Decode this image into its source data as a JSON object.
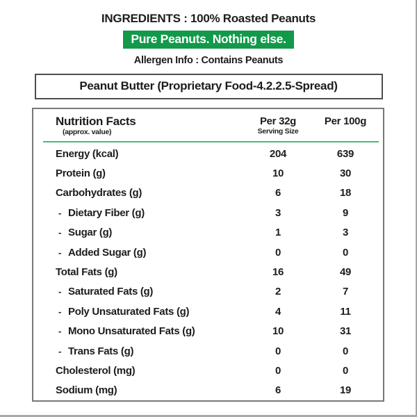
{
  "page": {
    "ingredients_label": "INGREDIENTS",
    "separator": " : ",
    "ingredients_value": "100% Roasted Peanuts",
    "tagline": "Pure Peanuts. Nothing else.",
    "allergen_label": "Allergen Info",
    "allergen_value": "Contains Peanuts",
    "product_title": "Peanut Butter (Proprietary Food-4.2.2.5-Spread)"
  },
  "colors": {
    "accent_green": "#12994a",
    "divider_green": "#4fb875",
    "text": "#1c1c1c"
  },
  "nutrition": {
    "title": "Nutrition Facts",
    "subtitle": "(approx. value)",
    "col1_line1": "Per 32g",
    "col1_line2": "Serving Size",
    "col2": "Per 100g",
    "rows": [
      {
        "label": "Energy (kcal)",
        "sub": false,
        "per_32g": "204",
        "per_100g": "639"
      },
      {
        "label": "Protein (g)",
        "sub": false,
        "per_32g": "10",
        "per_100g": "30"
      },
      {
        "label": "Carbohydrates (g)",
        "sub": false,
        "per_32g": "6",
        "per_100g": "18"
      },
      {
        "label": "Dietary Fiber (g)",
        "sub": true,
        "per_32g": "3",
        "per_100g": "9"
      },
      {
        "label": "Sugar (g)",
        "sub": true,
        "per_32g": "1",
        "per_100g": "3"
      },
      {
        "label": "Added Sugar (g)",
        "sub": true,
        "per_32g": "0",
        "per_100g": "0"
      },
      {
        "label": "Total Fats (g)",
        "sub": false,
        "per_32g": "16",
        "per_100g": "49"
      },
      {
        "label": "Saturated Fats (g)",
        "sub": true,
        "per_32g": "2",
        "per_100g": "7"
      },
      {
        "label": "Poly Unsaturated Fats (g)",
        "sub": true,
        "per_32g": "4",
        "per_100g": "11"
      },
      {
        "label": "Mono Unsaturated Fats (g)",
        "sub": true,
        "per_32g": "10",
        "per_100g": "31"
      },
      {
        "label": "Trans Fats (g)",
        "sub": true,
        "per_32g": "0",
        "per_100g": "0"
      },
      {
        "label": "Cholesterol (mg)",
        "sub": false,
        "per_32g": "0",
        "per_100g": "0"
      },
      {
        "label": "Sodium (mg)",
        "sub": false,
        "per_32g": "6",
        "per_100g": "19"
      }
    ]
  }
}
